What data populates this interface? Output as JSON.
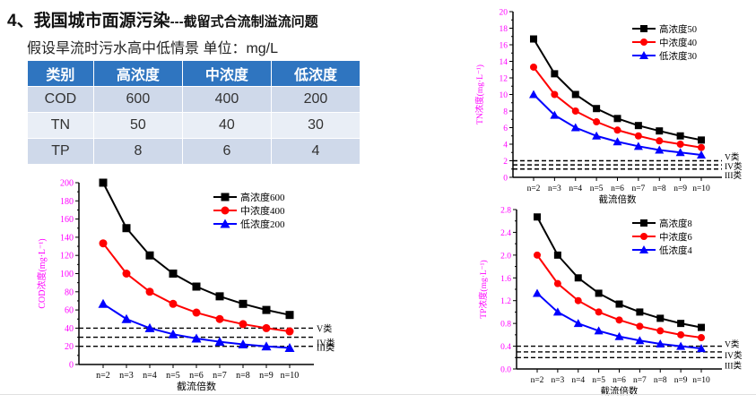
{
  "title": {
    "main": "4、我国城市面源污染",
    "sub": "---截留式合流制溢流问题"
  },
  "subtitle": "假设旱流时污水高中低情景  单位：mg/L",
  "table": {
    "headers": [
      "类别",
      "高浓度",
      "中浓度",
      "低浓度"
    ],
    "rows": [
      [
        "COD",
        "600",
        "400",
        "200"
      ],
      [
        "TN",
        "50",
        "40",
        "30"
      ],
      [
        "TP",
        "8",
        "6",
        "4"
      ]
    ]
  },
  "colors": {
    "high": "#000000",
    "mid": "#ff0000",
    "low": "#0000ff",
    "axis_label": "#ff00ff",
    "header": "#2f75c0"
  },
  "chart_data": [
    {
      "id": "cod",
      "type": "line",
      "xlabel": "截流倍数",
      "ylabel": "COD浓度(mg·L⁻¹)",
      "categories": [
        "n=2",
        "n=3",
        "n=4",
        "n=5",
        "n=6",
        "n=7",
        "n=8",
        "n=9",
        "n=10"
      ],
      "ylim": [
        0,
        200
      ],
      "yticks": [
        "0",
        "20",
        "40",
        "60",
        "80",
        "100",
        "120",
        "140",
        "160",
        "180",
        "200"
      ],
      "series": [
        {
          "name": "高浓度600",
          "marker": "square",
          "color": "#000000",
          "values": [
            200,
            150,
            120,
            100,
            85.7,
            75,
            66.7,
            60,
            54.5
          ]
        },
        {
          "name": "中浓度400",
          "marker": "circle",
          "color": "#ff0000",
          "values": [
            133.3,
            100,
            80,
            66.7,
            57.1,
            50,
            44.4,
            40,
            36.4
          ]
        },
        {
          "name": "低浓度200",
          "marker": "triangle",
          "color": "#0000ff",
          "values": [
            66.7,
            50,
            40,
            33.3,
            28.6,
            25,
            22.2,
            20,
            18.2
          ]
        }
      ],
      "ref_lines": [
        {
          "label": "V类",
          "value": 40
        },
        {
          "label": "IV类",
          "value": 30
        },
        {
          "label": "III类",
          "value": 20
        }
      ],
      "legend": "top-right"
    },
    {
      "id": "tn",
      "type": "line",
      "xlabel": "截流倍数",
      "ylabel": "TN浓度(mg·L⁻¹)",
      "categories": [
        "n=2",
        "n=3",
        "n=4",
        "n=5",
        "n=6",
        "n=7",
        "n=8",
        "n=9",
        "n=10"
      ],
      "ylim": [
        0,
        20
      ],
      "yticks": [
        "0",
        "2",
        "4",
        "6",
        "8",
        "10",
        "12",
        "14",
        "16",
        "18",
        "20"
      ],
      "series": [
        {
          "name": "高浓度50",
          "marker": "square",
          "color": "#000000",
          "values": [
            16.7,
            12.5,
            10,
            8.3,
            7.1,
            6.25,
            5.6,
            5,
            4.5
          ]
        },
        {
          "name": "中浓度40",
          "marker": "circle",
          "color": "#ff0000",
          "values": [
            13.3,
            10,
            8,
            6.7,
            5.7,
            5,
            4.4,
            4,
            3.6
          ]
        },
        {
          "name": "低浓度30",
          "marker": "triangle",
          "color": "#0000ff",
          "values": [
            10,
            7.5,
            6,
            5,
            4.3,
            3.75,
            3.3,
            3,
            2.7
          ]
        }
      ],
      "ref_lines": [
        {
          "label": "V类",
          "value": 2.0
        },
        {
          "label": "IV类",
          "value": 1.5
        },
        {
          "label": "III类",
          "value": 1.0
        }
      ],
      "legend": "top-right"
    },
    {
      "id": "tp",
      "type": "line",
      "xlabel": "截流倍数",
      "ylabel": "TP浓度(mg·L⁻¹)",
      "categories": [
        "n=2",
        "n=3",
        "n=4",
        "n=5",
        "n=6",
        "n=7",
        "n=8",
        "n=9",
        "n=10"
      ],
      "ylim": [
        0,
        2.8
      ],
      "yticks": [
        "0.0",
        "0.4",
        "0.8",
        "1.2",
        "1.6",
        "2.0",
        "2.4",
        "2.8"
      ],
      "series": [
        {
          "name": "高浓度8",
          "marker": "square",
          "color": "#000000",
          "values": [
            2.67,
            2,
            1.6,
            1.33,
            1.14,
            1,
            0.89,
            0.8,
            0.73
          ]
        },
        {
          "name": "中浓度6",
          "marker": "circle",
          "color": "#ff0000",
          "values": [
            2,
            1.5,
            1.2,
            1,
            0.86,
            0.75,
            0.67,
            0.6,
            0.55
          ]
        },
        {
          "name": "低浓度4",
          "marker": "triangle",
          "color": "#0000ff",
          "values": [
            1.33,
            1,
            0.8,
            0.67,
            0.57,
            0.5,
            0.44,
            0.4,
            0.36
          ]
        }
      ],
      "ref_lines": [
        {
          "label": "V类",
          "value": 0.4
        },
        {
          "label": "IV类",
          "value": 0.3
        },
        {
          "label": "III类",
          "value": 0.2
        }
      ],
      "legend": "top-right"
    }
  ]
}
